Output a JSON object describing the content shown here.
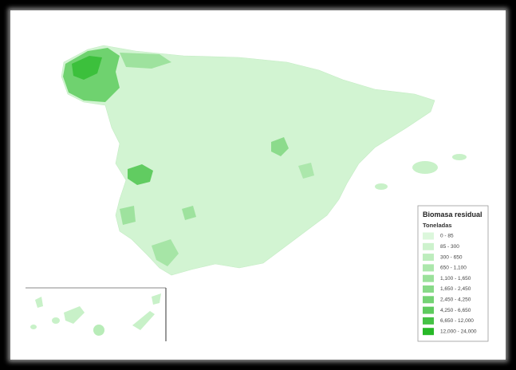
{
  "legend": {
    "title": "Biomasa residual",
    "subtitle": "Toneladas",
    "items": [
      {
        "label": "0 - 85",
        "color": "#dcf7dc"
      },
      {
        "label": "85 - 300",
        "color": "#cdf2cd"
      },
      {
        "label": "300 - 650",
        "color": "#bdedbd"
      },
      {
        "label": "650 - 1,100",
        "color": "#ace7ac"
      },
      {
        "label": "1,100 - 1,650",
        "color": "#9be19b"
      },
      {
        "label": "1,650 - 2,450",
        "color": "#88da88"
      },
      {
        "label": "2,450 - 4,250",
        "color": "#74d374"
      },
      {
        "label": "4,250 - 6,650",
        "color": "#5ecb5e"
      },
      {
        "label": "6,650 - 12,000",
        "color": "#45c245"
      },
      {
        "label": "12,000 - 24,000",
        "color": "#27b827"
      }
    ]
  }
}
